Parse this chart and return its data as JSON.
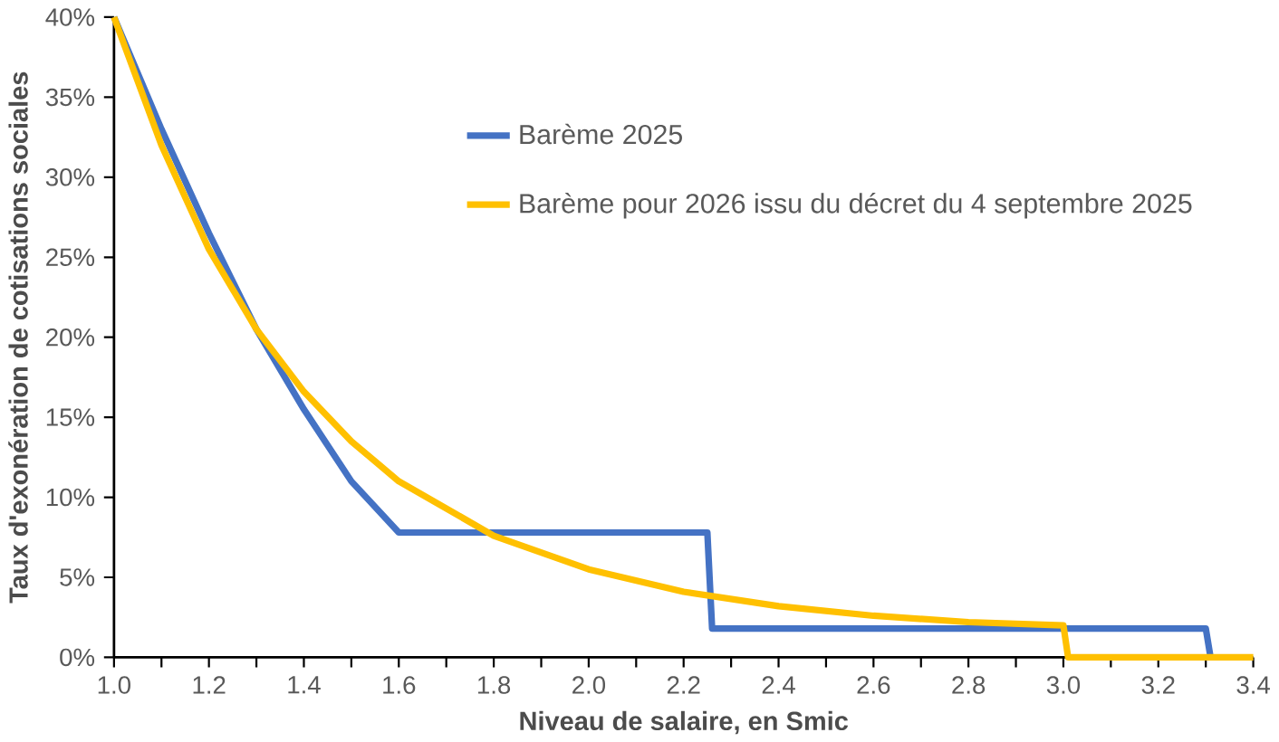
{
  "chart_data": {
    "type": "line",
    "xlabel": "Niveau de salaire, en Smic",
    "ylabel": "Taux d'exonération de cotisations sociales",
    "legend": "top",
    "grid": false,
    "marker": "none",
    "line_style": "solid",
    "xlim": [
      1.0,
      3.4
    ],
    "ylim": [
      0,
      40
    ],
    "xticks": [
      {
        "value": 1.0,
        "label": "1.0"
      },
      {
        "value": 1.1,
        "label": null
      },
      {
        "value": 1.2,
        "label": "1.2"
      },
      {
        "value": 1.3,
        "label": null
      },
      {
        "value": 1.4,
        "label": "1.4"
      },
      {
        "value": 1.5,
        "label": null
      },
      {
        "value": 1.6,
        "label": "1.6"
      },
      {
        "value": 1.7,
        "label": null
      },
      {
        "value": 1.8,
        "label": "1.8"
      },
      {
        "value": 1.9,
        "label": null
      },
      {
        "value": 2.0,
        "label": "2.0"
      },
      {
        "value": 2.1,
        "label": null
      },
      {
        "value": 2.2,
        "label": "2.2"
      },
      {
        "value": 2.3,
        "label": null
      },
      {
        "value": 2.4,
        "label": "2.4"
      },
      {
        "value": 2.5,
        "label": null
      },
      {
        "value": 2.6,
        "label": "2.6"
      },
      {
        "value": 2.7,
        "label": null
      },
      {
        "value": 2.8,
        "label": "2.8"
      },
      {
        "value": 2.9,
        "label": null
      },
      {
        "value": 3.0,
        "label": "3.0"
      },
      {
        "value": 3.1,
        "label": null
      },
      {
        "value": 3.2,
        "label": "3.2"
      },
      {
        "value": 3.3,
        "label": null
      },
      {
        "value": 3.4,
        "label": "3.4"
      }
    ],
    "yticks": [
      {
        "value": 0,
        "label": "0%"
      },
      {
        "value": 5,
        "label": "5%"
      },
      {
        "value": 10,
        "label": "10%"
      },
      {
        "value": 15,
        "label": "15%"
      },
      {
        "value": 20,
        "label": "20%"
      },
      {
        "value": 25,
        "label": "25%"
      },
      {
        "value": 30,
        "label": "30%"
      },
      {
        "value": 35,
        "label": "35%"
      },
      {
        "value": 40,
        "label": "40%"
      }
    ],
    "series": [
      {
        "name": "Barème 2025",
        "color": "#4472c4",
        "x": [
          1.0,
          1.1,
          1.2,
          1.3,
          1.4,
          1.5,
          1.6,
          2.25,
          2.26,
          3.3,
          3.31
        ],
        "values": [
          40,
          33,
          26.5,
          20.5,
          15.5,
          11,
          7.8,
          7.8,
          1.8,
          1.8,
          0
        ]
      },
      {
        "name": "Barème pour 2026 issu du décret du 4 septembre 2025",
        "color": "#ffc000",
        "x": [
          1.0,
          1.1,
          1.2,
          1.3,
          1.4,
          1.5,
          1.6,
          1.8,
          2.0,
          2.2,
          2.4,
          2.6,
          2.8,
          3.0,
          3.01,
          3.4
        ],
        "values": [
          40,
          32,
          25.5,
          20.5,
          16.6,
          13.5,
          11,
          7.6,
          5.5,
          4.1,
          3.2,
          2.6,
          2.2,
          2.0,
          0,
          0
        ]
      }
    ]
  }
}
